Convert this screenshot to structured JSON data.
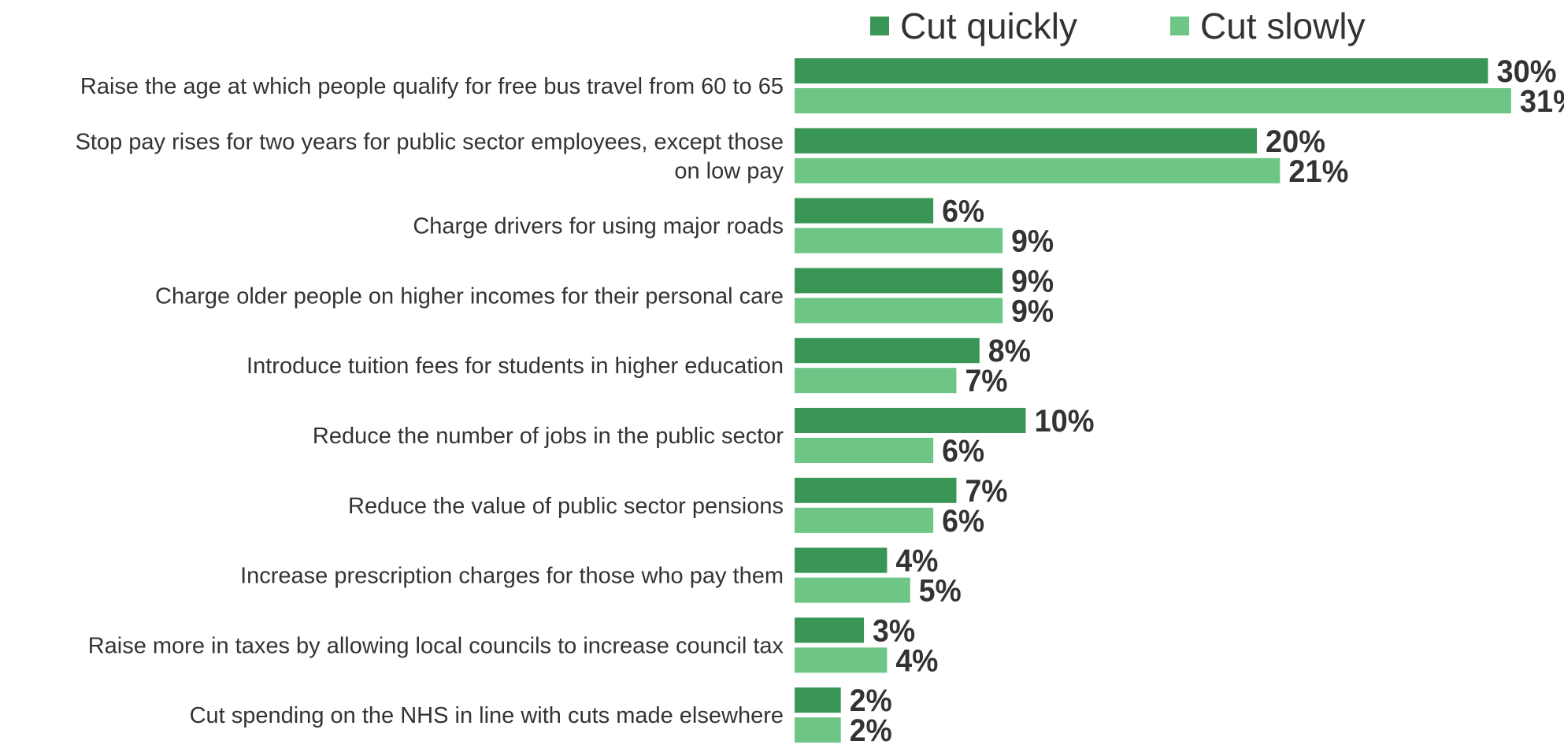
{
  "chart_data": {
    "type": "bar",
    "orientation": "horizontal",
    "grid": false,
    "legend_position": "top",
    "value_suffix": "%",
    "categories": [
      "Raise the age at which people qualify for free bus travel from 60 to 65",
      "Stop pay rises for two years for public sector employees, except those on low pay",
      "Charge drivers for using major roads",
      "Charge older people on higher incomes for their personal care",
      "Introduce tuition fees for students in higher education",
      "Reduce the number of jobs in the public sector",
      "Reduce the value of public sector pensions",
      "Increase prescription charges for those who pay them",
      "Raise more in taxes by allowing local councils to increase council tax",
      "Cut spending on the NHS in line with cuts made elsewhere"
    ],
    "category_lines": [
      [
        "Raise the age at which people qualify for free bus travel from 60 to 65"
      ],
      [
        "Stop pay rises for two years for public sector employees, except those",
        "on low pay"
      ],
      [
        "Charge drivers for using major roads"
      ],
      [
        "Charge older people on higher incomes for their personal care"
      ],
      [
        "Introduce tuition fees for students in higher education"
      ],
      [
        "Reduce the number of jobs in the public sector"
      ],
      [
        "Reduce the value of public sector pensions"
      ],
      [
        "Increase prescription charges for those who pay them"
      ],
      [
        "Raise more in taxes by allowing local councils to increase council tax"
      ],
      [
        "Cut spending on the NHS in line with cuts made elsewhere"
      ]
    ],
    "series": [
      {
        "name": "Cut quickly",
        "color": "#3a9657",
        "values": [
          30,
          20,
          6,
          9,
          8,
          10,
          7,
          4,
          3,
          2
        ]
      },
      {
        "name": "Cut slowly",
        "color": "#6dc686",
        "values": [
          31,
          21,
          9,
          9,
          7,
          6,
          6,
          5,
          4,
          2
        ]
      }
    ],
    "xlim": [
      0,
      31
    ]
  },
  "colors": {
    "label_text": "#333333",
    "value_text": "#333333"
  }
}
